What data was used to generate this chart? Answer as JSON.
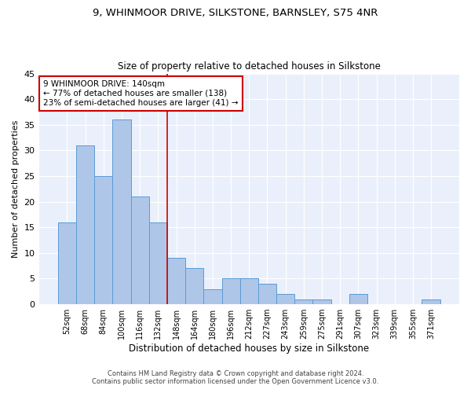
{
  "title1": "9, WHINMOOR DRIVE, SILKSTONE, BARNSLEY, S75 4NR",
  "title2": "Size of property relative to detached houses in Silkstone",
  "xlabel": "Distribution of detached houses by size in Silkstone",
  "ylabel": "Number of detached properties",
  "categories": [
    "52sqm",
    "68sqm",
    "84sqm",
    "100sqm",
    "116sqm",
    "132sqm",
    "148sqm",
    "164sqm",
    "180sqm",
    "196sqm",
    "212sqm",
    "227sqm",
    "243sqm",
    "259sqm",
    "275sqm",
    "291sqm",
    "307sqm",
    "323sqm",
    "339sqm",
    "355sqm",
    "371sqm"
  ],
  "values": [
    16,
    31,
    25,
    36,
    21,
    16,
    9,
    7,
    3,
    5,
    5,
    4,
    2,
    1,
    1,
    0,
    2,
    0,
    0,
    0,
    1
  ],
  "bar_color": "#aec6e8",
  "bar_edge_color": "#5b9bd5",
  "annotation_title": "9 WHINMOOR DRIVE: 140sqm",
  "annotation_line1": "← 77% of detached houses are smaller (138)",
  "annotation_line2": "23% of semi-detached houses are larger (41) →",
  "annotation_box_color": "#ffffff",
  "annotation_box_edge": "#cc0000",
  "vline_color": "#cc0000",
  "vline_x": 5.5,
  "ylim": [
    0,
    45
  ],
  "yticks": [
    0,
    5,
    10,
    15,
    20,
    25,
    30,
    35,
    40,
    45
  ],
  "footer1": "Contains HM Land Registry data © Crown copyright and database right 2024.",
  "footer2": "Contains public sector information licensed under the Open Government Licence v3.0.",
  "bg_color": "#eaf0fb",
  "fig_bg": "#ffffff"
}
